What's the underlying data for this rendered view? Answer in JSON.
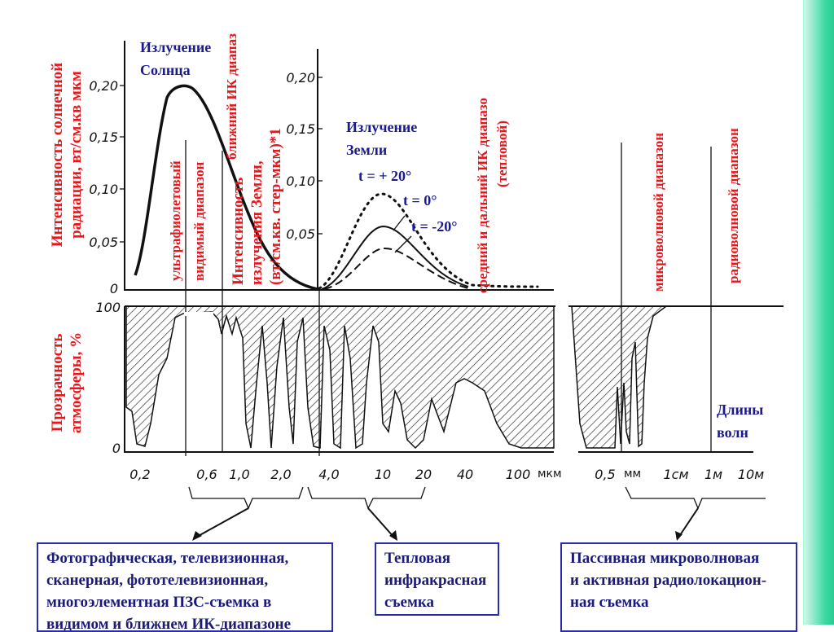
{
  "sun_chart": {
    "title_line1": "Излучение",
    "title_line2": "Солнца",
    "ylabel_line1": "Интенсивность солнечной",
    "ylabel_line2": "радиации, вт/см.кв мкм",
    "yticks": [
      "0,20",
      "0,15",
      "0,10",
      "0,05",
      "0"
    ]
  },
  "earth_chart": {
    "title_line1": "Излучение",
    "title_line2": "Земли",
    "curve_labels": [
      "t = + 20°",
      "t = 0°",
      "t = -20°"
    ],
    "ylabel_line1": "Интенсивность",
    "ylabel_line2": "излучения Земли,",
    "ylabel_line3": "(вт/см.кв. стер-мкм)*1",
    "yticks": [
      "0,20",
      "0,15",
      "0,10",
      "0,05"
    ]
  },
  "bands": {
    "uv": "ультрафиолетовый",
    "visible": "видимый диапазон",
    "near_ir": "ближний ИК диапаз",
    "mid_far_ir": "средний и дальний ИК диапазо",
    "thermal": "(тепловой)",
    "microwave": "микроволновой диапазон",
    "radio": "радиоволновой диапазон"
  },
  "transparency": {
    "ylabel_line1": "Прозрачность",
    "ylabel_line2": "атмосферы, %",
    "yticks": [
      "100",
      "0"
    ]
  },
  "x_axis": {
    "ticks": [
      "0,2",
      "0,6",
      "1,0",
      "2,0",
      "4,0",
      "10",
      "20",
      "40",
      "100",
      "мкм",
      "0,5",
      "мм",
      "1см",
      "1м",
      "10м"
    ],
    "label_line1": "Длины",
    "label_line2": "волн"
  },
  "boxes": {
    "photo": [
      "Фотографическая, телевизионная,",
      "сканерная, фототелевизионная,",
      "многоэлементная ПЗС-съемка в",
      "видимом и ближнем ИК-диапазоне"
    ],
    "thermal": [
      "Тепловая",
      "инфракрасная",
      "съемка"
    ],
    "radio": [
      "Пассивная микроволновая",
      "и активная радиолокацион-",
      "ная съемка"
    ]
  }
}
